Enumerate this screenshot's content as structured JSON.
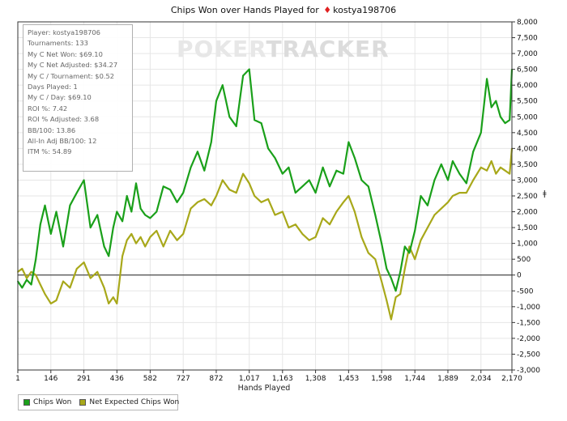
{
  "title": {
    "prefix": "Chips Won over Hands Played for",
    "suit_icon": "♦",
    "player": "kostya198706"
  },
  "stats": [
    "Player: kostya198706",
    "Tournaments: 133",
    "My C Net Won: $69.10",
    "My C Net Adjusted: $34.27",
    "My C / Tournament: $0.52",
    "Days Played: 1",
    "My C / Day: $69.10",
    "ROI %: 7.42",
    "ROI % Adjusted: 3.68",
    "BB/100: 13.86",
    "All-In Adj BB/100: 12",
    "ITM %: 54.89"
  ],
  "watermark": {
    "part1": "POKER",
    "part2": "TRACKER"
  },
  "y_unit": "ǂ",
  "chart_data": {
    "type": "line",
    "title": "Chips Won over Hands Played for kostya198706",
    "xlabel": "Hands Played",
    "ylabel": "",
    "xlim": [
      1,
      2170
    ],
    "ylim": [
      -3000,
      8000
    ],
    "x_ticks": [
      1,
      146,
      291,
      436,
      582,
      727,
      872,
      1017,
      1163,
      1308,
      1453,
      1598,
      1744,
      1889,
      2034,
      2170
    ],
    "x_tick_labels": [
      "1",
      "146",
      "291",
      "436",
      "582",
      "727",
      "872",
      "1,017",
      "1,163",
      "1,308",
      "1,453",
      "1,598",
      "1,744",
      "1,889",
      "2,034",
      "2,170"
    ],
    "y_ticks": [
      -3000,
      -2500,
      -2000,
      -1500,
      -1000,
      -500,
      0,
      500,
      1000,
      1500,
      2000,
      2500,
      3000,
      3500,
      4000,
      4500,
      5000,
      5500,
      6000,
      6500,
      7000,
      7500,
      8000
    ],
    "y_tick_labels": [
      "-3,000",
      "-2,500",
      "-2,000",
      "-1,500",
      "-1,000",
      "-500",
      "0",
      "500",
      "1,000",
      "1,500",
      "2,000",
      "2,500",
      "3,000",
      "3,500",
      "4,000",
      "4,500",
      "5,000",
      "5,500",
      "6,000",
      "6,500",
      "7,000",
      "7,500",
      "8,000"
    ],
    "series": [
      {
        "name": "Chips Won",
        "color": "#1aa01a",
        "x": [
          1,
          20,
          40,
          60,
          80,
          100,
          120,
          146,
          170,
          200,
          230,
          260,
          291,
          320,
          350,
          380,
          400,
          420,
          436,
          460,
          480,
          500,
          520,
          540,
          560,
          582,
          610,
          640,
          670,
          700,
          727,
          760,
          790,
          820,
          850,
          872,
          900,
          930,
          960,
          990,
          1017,
          1040,
          1070,
          1100,
          1130,
          1163,
          1190,
          1220,
          1250,
          1280,
          1308,
          1340,
          1370,
          1400,
          1430,
          1453,
          1480,
          1510,
          1540,
          1570,
          1598,
          1620,
          1640,
          1660,
          1680,
          1700,
          1720,
          1744,
          1770,
          1800,
          1830,
          1860,
          1889,
          1910,
          1940,
          1970,
          2000,
          2034,
          2060,
          2080,
          2100,
          2120,
          2140,
          2160,
          2170
        ],
        "values": [
          -200,
          -400,
          -150,
          -300,
          500,
          1600,
          2200,
          1300,
          2000,
          900,
          2200,
          2600,
          3000,
          1500,
          1900,
          900,
          600,
          1500,
          2000,
          1700,
          2500,
          2000,
          2900,
          2100,
          1900,
          1800,
          2000,
          2800,
          2700,
          2300,
          2600,
          3400,
          3900,
          3300,
          4200,
          5500,
          6000,
          5000,
          4700,
          6300,
          6500,
          4900,
          4800,
          4000,
          3700,
          3200,
          3400,
          2600,
          2800,
          3000,
          2600,
          3400,
          2800,
          3300,
          3200,
          4200,
          3700,
          3000,
          2800,
          1900,
          1000,
          200,
          -100,
          -500,
          100,
          900,
          700,
          1400,
          2500,
          2200,
          3000,
          3500,
          3000,
          3600,
          3200,
          2900,
          3900,
          4500,
          6200,
          5300,
          5500,
          5000,
          4800,
          4900,
          6500
        ]
      },
      {
        "name": "Net Expected Chips Won",
        "color": "#a8a81a",
        "x": [
          1,
          20,
          40,
          60,
          80,
          100,
          120,
          146,
          170,
          200,
          230,
          260,
          291,
          320,
          350,
          380,
          400,
          420,
          436,
          460,
          480,
          500,
          520,
          540,
          560,
          582,
          610,
          640,
          670,
          700,
          727,
          760,
          790,
          820,
          850,
          872,
          900,
          930,
          960,
          990,
          1017,
          1040,
          1070,
          1100,
          1130,
          1163,
          1190,
          1220,
          1250,
          1280,
          1308,
          1340,
          1370,
          1400,
          1430,
          1453,
          1480,
          1510,
          1540,
          1570,
          1598,
          1620,
          1640,
          1660,
          1680,
          1700,
          1720,
          1744,
          1770,
          1800,
          1830,
          1860,
          1889,
          1910,
          1940,
          1970,
          2000,
          2034,
          2060,
          2080,
          2100,
          2120,
          2140,
          2160,
          2170
        ],
        "values": [
          100,
          200,
          -100,
          100,
          0,
          -300,
          -600,
          -900,
          -800,
          -200,
          -400,
          200,
          400,
          -100,
          100,
          -400,
          -900,
          -700,
          -900,
          600,
          1100,
          1300,
          1000,
          1200,
          900,
          1200,
          1400,
          900,
          1400,
          1100,
          1300,
          2100,
          2300,
          2400,
          2200,
          2500,
          3000,
          2700,
          2600,
          3200,
          2900,
          2500,
          2300,
          2400,
          1900,
          2000,
          1500,
          1600,
          1300,
          1100,
          1200,
          1800,
          1600,
          2000,
          2300,
          2500,
          2000,
          1200,
          700,
          500,
          -200,
          -800,
          -1400,
          -700,
          -600,
          200,
          900,
          500,
          1100,
          1500,
          1900,
          2100,
          2300,
          2500,
          2600,
          2600,
          3000,
          3400,
          3300,
          3600,
          3200,
          3400,
          3300,
          3200,
          4000
        ]
      }
    ],
    "legend": [
      "Chips Won",
      "Net Expected Chips Won"
    ],
    "legend_position": "bottom-left",
    "grid": true
  }
}
